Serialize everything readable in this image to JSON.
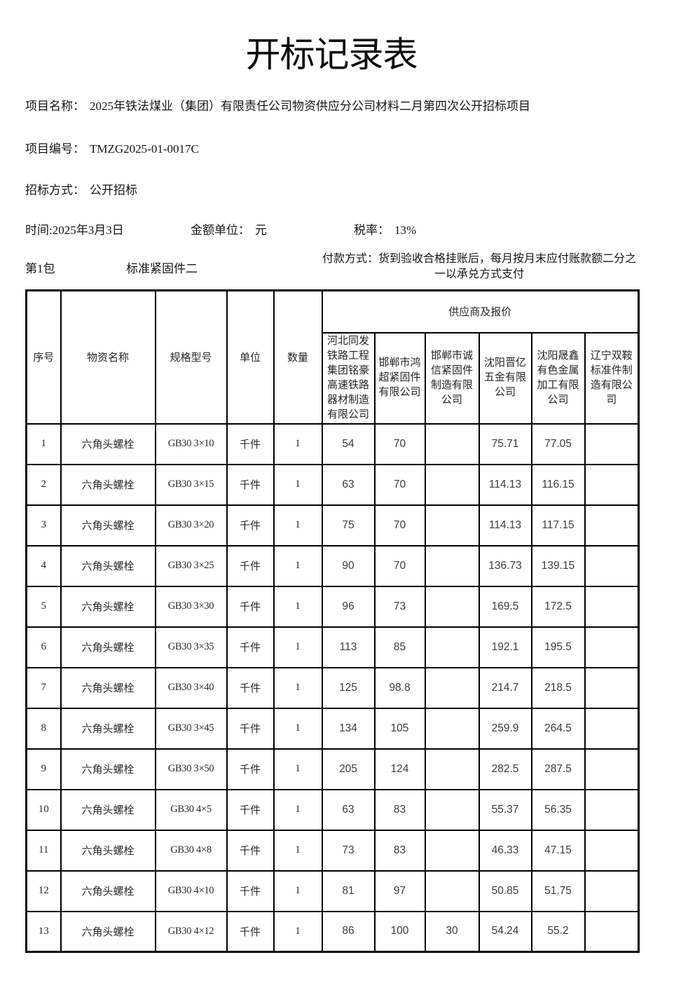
{
  "title": "开标记录表",
  "info": {
    "project_name_label": "项目名称：",
    "project_name": "2025年铁法煤业（集团）有限责任公司物资供应分公司材料二月第四次公开招标项目",
    "project_code_label": "项目编号：",
    "project_code": "TMZG2025-01-0017C",
    "bid_method_label": "招标方式：",
    "bid_method": "公开招标",
    "time_label": "时间:",
    "time": "2025年3月3日",
    "amount_unit_label": "金额单位：",
    "amount_unit": "元",
    "tax_rate_label": "税率：",
    "tax_rate": "13%"
  },
  "package": {
    "package_no": "第1包",
    "package_name": "标准紧固件二",
    "payment_label": "付款方式：",
    "payment_terms": "货到验收合格挂账后，每月按月末应付账款额二分之一以承兑方式支付"
  },
  "table": {
    "supplier_group_header": "供应商及报价",
    "columns": [
      "序号",
      "物资名称",
      "规格型号",
      "单位",
      "数量"
    ],
    "suppliers": [
      "河北同发铁路工程集团铭豪高速铁路器材制造有限公司",
      "邯郸市鸿超紧固件有限公司",
      "邯郸市诚信紧固件制造有限公司",
      "沈阳晋亿五金有限公司",
      "沈阳晟鑫有色金属加工有限公司",
      "辽宁双鞍标准件制造有限公司"
    ],
    "rows": [
      {
        "no": "1",
        "name": "六角头螺栓",
        "spec": "GB30 3×10",
        "unit": "千件",
        "qty": "1",
        "prices": [
          "54",
          "70",
          "",
          "75.71",
          "77.05",
          ""
        ]
      },
      {
        "no": "2",
        "name": "六角头螺栓",
        "spec": "GB30 3×15",
        "unit": "千件",
        "qty": "1",
        "prices": [
          "63",
          "70",
          "",
          "114.13",
          "116.15",
          ""
        ]
      },
      {
        "no": "3",
        "name": "六角头螺栓",
        "spec": "GB30 3×20",
        "unit": "千件",
        "qty": "1",
        "prices": [
          "75",
          "70",
          "",
          "114.13",
          "117.15",
          ""
        ]
      },
      {
        "no": "4",
        "name": "六角头螺栓",
        "spec": "GB30 3×25",
        "unit": "千件",
        "qty": "1",
        "prices": [
          "90",
          "70",
          "",
          "136.73",
          "139.15",
          ""
        ]
      },
      {
        "no": "5",
        "name": "六角头螺栓",
        "spec": "GB30 3×30",
        "unit": "千件",
        "qty": "1",
        "prices": [
          "96",
          "73",
          "",
          "169.5",
          "172.5",
          ""
        ]
      },
      {
        "no": "6",
        "name": "六角头螺栓",
        "spec": "GB30 3×35",
        "unit": "千件",
        "qty": "1",
        "prices": [
          "113",
          "85",
          "",
          "192.1",
          "195.5",
          ""
        ]
      },
      {
        "no": "7",
        "name": "六角头螺栓",
        "spec": "GB30 3×40",
        "unit": "千件",
        "qty": "1",
        "prices": [
          "125",
          "98.8",
          "",
          "214.7",
          "218.5",
          ""
        ]
      },
      {
        "no": "8",
        "name": "六角头螺栓",
        "spec": "GB30 3×45",
        "unit": "千件",
        "qty": "1",
        "prices": [
          "134",
          "105",
          "",
          "259.9",
          "264.5",
          ""
        ]
      },
      {
        "no": "9",
        "name": "六角头螺栓",
        "spec": "GB30 3×50",
        "unit": "千件",
        "qty": "1",
        "prices": [
          "205",
          "124",
          "",
          "282.5",
          "287.5",
          ""
        ]
      },
      {
        "no": "10",
        "name": "六角头螺栓",
        "spec": "GB30 4×5",
        "unit": "千件",
        "qty": "1",
        "prices": [
          "63",
          "83",
          "",
          "55.37",
          "56.35",
          ""
        ]
      },
      {
        "no": "11",
        "name": "六角头螺栓",
        "spec": "GB30 4×8",
        "unit": "千件",
        "qty": "1",
        "prices": [
          "73",
          "83",
          "",
          "46.33",
          "47.15",
          ""
        ]
      },
      {
        "no": "12",
        "name": "六角头螺栓",
        "spec": "GB30 4×10",
        "unit": "千件",
        "qty": "1",
        "prices": [
          "81",
          "97",
          "",
          "50.85",
          "51.75",
          ""
        ]
      },
      {
        "no": "13",
        "name": "六角头螺栓",
        "spec": "GB30 4×12",
        "unit": "千件",
        "qty": "1",
        "prices": [
          "86",
          "100",
          "30",
          "54.24",
          "55.2",
          ""
        ]
      }
    ]
  }
}
